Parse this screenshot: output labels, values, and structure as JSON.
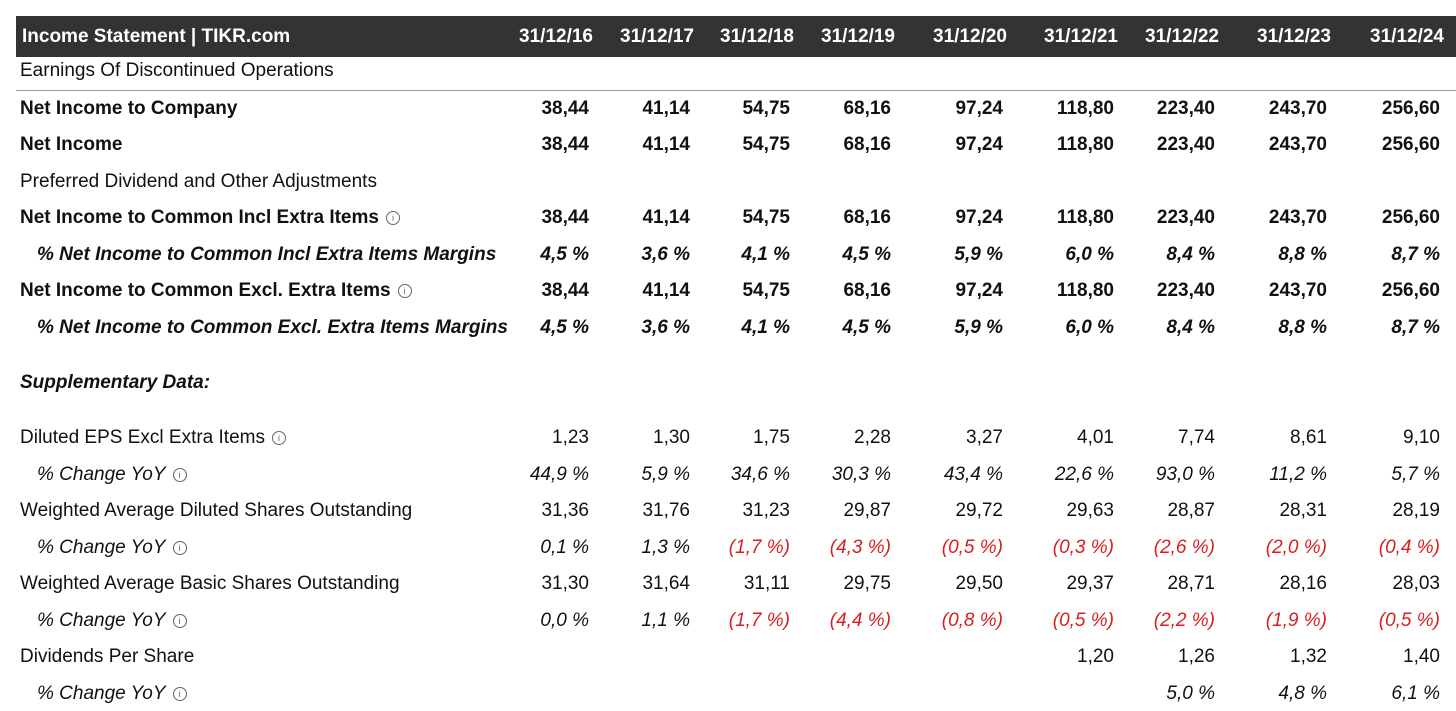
{
  "header": {
    "title": "Income Statement | TIKR.com",
    "columns": [
      "31/12/16",
      "31/12/17",
      "31/12/18",
      "31/12/19",
      "31/12/20",
      "31/12/21",
      "31/12/22",
      "31/12/23",
      "31/12/24"
    ]
  },
  "table": {
    "rows": [
      {
        "label": "Earnings Of Discontinued Operations"
      },
      {
        "label": "Net Income to Company",
        "values": [
          "38,44",
          "41,14",
          "54,75",
          "68,16",
          "97,24",
          "118,80",
          "223,40",
          "243,70",
          "256,60"
        ]
      },
      {
        "label": "Net Income",
        "values": [
          "38,44",
          "41,14",
          "54,75",
          "68,16",
          "97,24",
          "118,80",
          "223,40",
          "243,70",
          "256,60"
        ]
      },
      {
        "label": "Preferred Dividend and Other Adjustments"
      },
      {
        "label": "Net Income to Common Incl Extra Items",
        "values": [
          "38,44",
          "41,14",
          "54,75",
          "68,16",
          "97,24",
          "118,80",
          "223,40",
          "243,70",
          "256,60"
        ]
      },
      {
        "label": "% Net Income to Common Incl Extra Items Margins",
        "values": [
          "4,5 %",
          "3,6 %",
          "4,1 %",
          "4,5 %",
          "5,9 %",
          "6,0 %",
          "8,4 %",
          "8,8 %",
          "8,7 %"
        ]
      },
      {
        "label": "Net Income to Common Excl. Extra Items",
        "values": [
          "38,44",
          "41,14",
          "54,75",
          "68,16",
          "97,24",
          "118,80",
          "223,40",
          "243,70",
          "256,60"
        ]
      },
      {
        "label": "% Net Income to Common Excl. Extra Items Margins",
        "values": [
          "4,5 %",
          "3,6 %",
          "4,1 %",
          "4,5 %",
          "5,9 %",
          "6,0 %",
          "8,4 %",
          "8,8 %",
          "8,7 %"
        ]
      },
      {
        "label": "Supplementary Data:"
      },
      {
        "label": "Diluted EPS Excl Extra Items",
        "values": [
          "1,23",
          "1,30",
          "1,75",
          "2,28",
          "3,27",
          "4,01",
          "7,74",
          "8,61",
          "9,10"
        ]
      },
      {
        "label": "% Change YoY",
        "values": [
          "44,9 %",
          "5,9 %",
          "34,6 %",
          "30,3 %",
          "43,4 %",
          "22,6 %",
          "93,0 %",
          "11,2 %",
          "5,7 %"
        ]
      },
      {
        "label": "Weighted Average Diluted Shares Outstanding",
        "values": [
          "31,36",
          "31,76",
          "31,23",
          "29,87",
          "29,72",
          "29,63",
          "28,87",
          "28,31",
          "28,19"
        ]
      },
      {
        "label": "% Change YoY",
        "values": [
          "0,1 %",
          "1,3 %",
          "(1,7 %)",
          "(4,3 %)",
          "(0,5 %)",
          "(0,3 %)",
          "(2,6 %)",
          "(2,0 %)",
          "(0,4 %)"
        ]
      },
      {
        "label": "Weighted Average Basic Shares Outstanding",
        "values": [
          "31,30",
          "31,64",
          "31,11",
          "29,75",
          "29,50",
          "29,37",
          "28,71",
          "28,16",
          "28,03"
        ]
      },
      {
        "label": "% Change YoY",
        "values": [
          "0,0 %",
          "1,1 %",
          "(1,7 %)",
          "(4,4 %)",
          "(0,8 %)",
          "(0,5 %)",
          "(2,2 %)",
          "(1,9 %)",
          "(0,5 %)"
        ]
      },
      {
        "label": "Dividends Per Share",
        "values": [
          null,
          null,
          null,
          null,
          null,
          "1,20",
          "1,26",
          "1,32",
          "1,40"
        ]
      },
      {
        "label": "% Change YoY",
        "values": [
          null,
          null,
          null,
          null,
          null,
          null,
          "5,0 %",
          "4,8 %",
          "6,1 %"
        ]
      }
    ]
  }
}
